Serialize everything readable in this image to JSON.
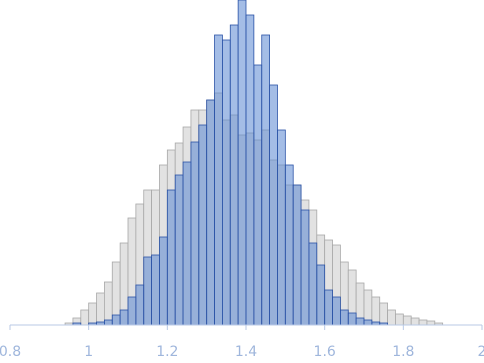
{
  "chart_data": {
    "type": "histogram",
    "bins": [
      0.94,
      0.96,
      0.98,
      1.0,
      1.02,
      1.04,
      1.06,
      1.08,
      1.1,
      1.12,
      1.14,
      1.16,
      1.18,
      1.2,
      1.22,
      1.24,
      1.26,
      1.28,
      1.3,
      1.32,
      1.34,
      1.36,
      1.38,
      1.4,
      1.42,
      1.44,
      1.46,
      1.48,
      1.5,
      1.52,
      1.54,
      1.56,
      1.58,
      1.6,
      1.62,
      1.64,
      1.66,
      1.68,
      1.7,
      1.72,
      1.74,
      1.76,
      1.78,
      1.8,
      1.82,
      1.84,
      1.86,
      1.88,
      1.9
    ],
    "series": [
      {
        "color": "#e2e2e2",
        "stroke": "#a8a8a8",
        "values": [
          2,
          7,
          15,
          22,
          32,
          43,
          63,
          82,
          107,
          121,
          135,
          135,
          160,
          175,
          182,
          198,
          215,
          215,
          225,
          232,
          205,
          210,
          190,
          192,
          185,
          195,
          165,
          160,
          140,
          140,
          125,
          115,
          90,
          85,
          80,
          63,
          55,
          42,
          35,
          28,
          22,
          15,
          11,
          9,
          7,
          5,
          4,
          2
        ]
      },
      {
        "color": "#5a86d2",
        "stroke": "#2a52a6",
        "values": [
          0,
          2,
          0,
          2,
          3,
          5,
          10,
          15,
          28,
          40,
          68,
          70,
          88,
          135,
          150,
          163,
          183,
          200,
          225,
          290,
          285,
          300,
          325,
          310,
          260,
          290,
          240,
          195,
          160,
          140,
          115,
          82,
          60,
          35,
          28,
          15,
          12,
          7,
          5,
          3,
          2,
          0,
          0,
          0,
          0,
          0,
          0,
          0
        ]
      }
    ],
    "xlim": [
      0.8,
      2
    ],
    "xticks": [
      0.8,
      1,
      1.2,
      1.4,
      1.6,
      1.8,
      2
    ],
    "ylim": [
      0,
      325
    ]
  }
}
